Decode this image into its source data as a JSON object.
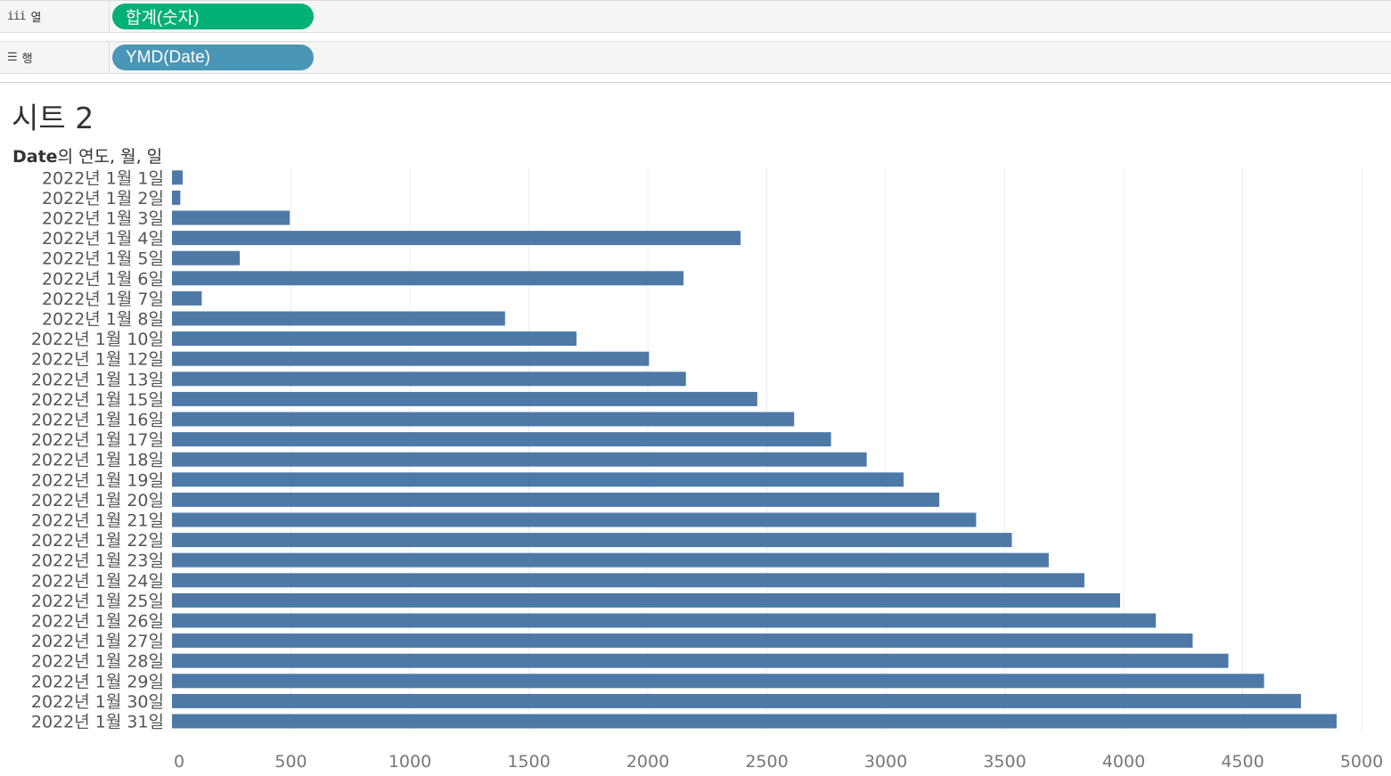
{
  "columns_shelf": {
    "label": "열",
    "icon": "columns-icon",
    "pill": "합계(숫자)",
    "pill_color": "#00b074"
  },
  "rows_shelf": {
    "label": "행",
    "icon": "rows-icon",
    "pill": "YMD(Date)",
    "pill_color": "#4a96b6"
  },
  "sheet": {
    "title": "시트 2"
  },
  "chart_data": {
    "type": "bar",
    "orientation": "horizontal",
    "axis_header_bold": "Date",
    "axis_header_rest": "의 연도, 월, 일",
    "categories": [
      "2022년 1월 1일",
      "2022년 1월 2일",
      "2022년 1월 3일",
      "2022년 1월 4일",
      "2022년 1월 5일",
      "2022년 1월 6일",
      "2022년 1월 7일",
      "2022년 1월 8일",
      "2022년 1월 10일",
      "2022년 1월 12일",
      "2022년 1월 13일",
      "2022년 1월 15일",
      "2022년 1월 16일",
      "2022년 1월 17일",
      "2022년 1월 18일",
      "2022년 1월 19일",
      "2022년 1월 20일",
      "2022년 1월 21일",
      "2022년 1월 22일",
      "2022년 1월 23일",
      "2022년 1월 24일",
      "2022년 1월 25일",
      "2022년 1월 26일",
      "2022년 1월 27일",
      "2022년 1월 28일",
      "2022년 1월 29일",
      "2022년 1월 30일",
      "2022년 1월 31일"
    ],
    "values": [
      45,
      35,
      495,
      2390,
      285,
      2150,
      125,
      1400,
      1700,
      2005,
      2160,
      2460,
      2615,
      2770,
      2920,
      3075,
      3225,
      3380,
      3530,
      3685,
      3835,
      3985,
      4135,
      4290,
      4440,
      4590,
      4745,
      4895
    ],
    "xlim": [
      0,
      5000
    ],
    "xticks": [
      0,
      500,
      1000,
      1500,
      2000,
      2500,
      3000,
      3500,
      4000,
      4500,
      5000
    ],
    "bar_color": "#4e79a7",
    "grid": true
  }
}
